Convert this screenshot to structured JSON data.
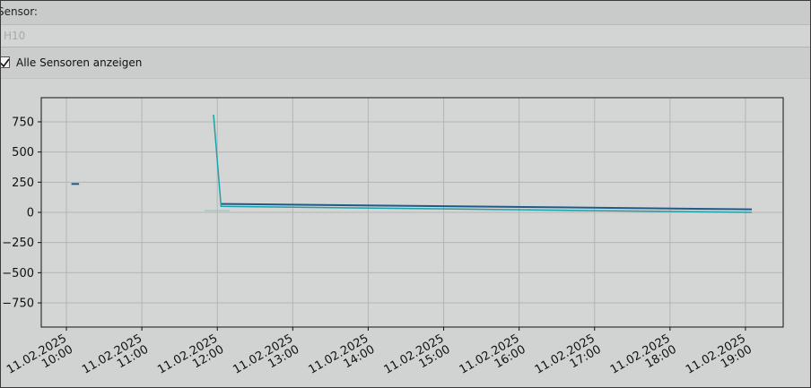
{
  "sensor_row": {
    "label": "Sensor:"
  },
  "sensor_select": {
    "value": "H10"
  },
  "show_all": {
    "label": "Alle Sensoren anzeigen",
    "checked": true
  },
  "chart_data": {
    "type": "line",
    "ylim": [
      -950,
      950
    ],
    "xlim": [
      "2025-02-11T09:40",
      "2025-02-11T19:30"
    ],
    "y_ticks": [
      750,
      500,
      250,
      0,
      -250,
      -500,
      -750
    ],
    "y_tick_labels": [
      "750",
      "500",
      "250",
      "0",
      "−250",
      "−500",
      "−750"
    ],
    "x_ticks": [
      "2025-02-11T10:00",
      "2025-02-11T11:00",
      "2025-02-11T12:00",
      "2025-02-11T13:00",
      "2025-02-11T14:00",
      "2025-02-11T15:00",
      "2025-02-11T16:00",
      "2025-02-11T17:00",
      "2025-02-11T18:00",
      "2025-02-11T19:00"
    ],
    "x_tick_labels": [
      [
        "11.02.2025",
        "10:00"
      ],
      [
        "11.02.2025",
        "11:00"
      ],
      [
        "11.02.2025",
        "12:00"
      ],
      [
        "11.02.2025",
        "13:00"
      ],
      [
        "11.02.2025",
        "14:00"
      ],
      [
        "11.02.2025",
        "15:00"
      ],
      [
        "11.02.2025",
        "16:00"
      ],
      [
        "11.02.2025",
        "17:00"
      ],
      [
        "11.02.2025",
        "18:00"
      ],
      [
        "11.02.2025",
        "19:00"
      ]
    ],
    "grid": true,
    "series": [
      {
        "color": "#1f5a8a",
        "width": 2,
        "points": [
          [
            "2025-02-11T10:04",
            235
          ],
          [
            "2025-02-11T10:10",
            235
          ]
        ]
      },
      {
        "color": "#1f5a8a",
        "width": 2,
        "points": [
          [
            "2025-02-11T12:03",
            70
          ],
          [
            "2025-02-11T19:05",
            25
          ]
        ]
      },
      {
        "color": "#1aa3a8",
        "width": 1.5,
        "points": [
          [
            "2025-02-11T11:57",
            810
          ],
          [
            "2025-02-11T12:03",
            50
          ],
          [
            "2025-02-11T19:05",
            0
          ]
        ]
      },
      {
        "color": "#8fc1c4",
        "width": 1,
        "points": [
          [
            "2025-02-11T11:50",
            15
          ],
          [
            "2025-02-11T12:10",
            15
          ]
        ]
      }
    ]
  }
}
